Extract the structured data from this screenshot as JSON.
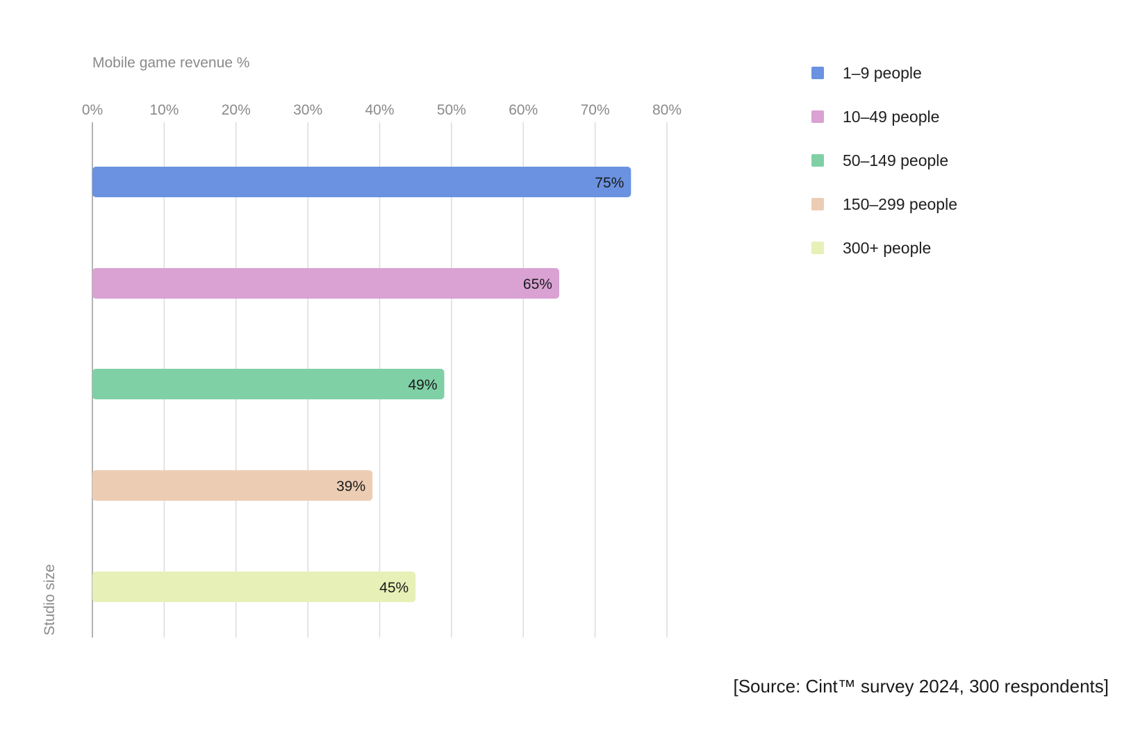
{
  "chart_data": {
    "type": "bar",
    "orientation": "horizontal",
    "categories": [
      "1–9 people",
      "10–49 people",
      "50–149 people",
      "150–299 people",
      "300+ people"
    ],
    "values": [
      75,
      65,
      49,
      39,
      45
    ],
    "value_labels": [
      "75%",
      "65%",
      "49%",
      "39%",
      "45%"
    ],
    "colors": [
      "#6a92e0",
      "#d9a2d3",
      "#80d0a6",
      "#eccdb4",
      "#e7f0b6"
    ],
    "xlabel": "Mobile game revenue %",
    "ylabel": "Studio size",
    "xlim": [
      0,
      80
    ],
    "xticks": [
      0,
      10,
      20,
      30,
      40,
      50,
      60,
      70,
      80
    ],
    "xtick_labels": [
      "0%",
      "10%",
      "20%",
      "30%",
      "40%",
      "50%",
      "60%",
      "70%",
      "80%"
    ],
    "grid": true,
    "legend": {
      "position": "top-right",
      "entries": [
        "1–9 people",
        "10–49 people",
        "50–149 people",
        "150–299 people",
        "300+ people"
      ]
    },
    "source_note": "[Source: Cint™ survey 2024, 300 respondents]"
  }
}
